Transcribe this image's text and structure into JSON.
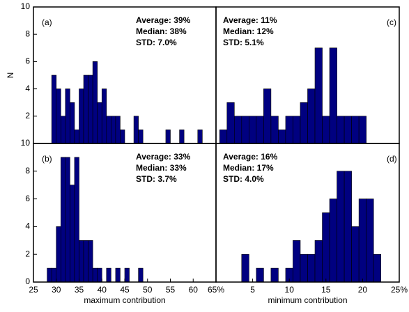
{
  "chart_data": [
    {
      "type": "histogram",
      "label": "(a)",
      "stats": [
        "Average: 39%",
        "Median: 38%",
        "STD: 7.0%"
      ],
      "ylabel": "N",
      "bins": [
        29,
        30,
        31,
        32,
        33,
        34,
        35,
        36,
        37,
        38,
        39,
        40,
        41,
        42,
        43,
        44,
        45,
        46,
        47,
        48,
        49,
        50,
        51,
        52,
        53,
        54,
        55,
        56,
        57,
        58,
        59,
        60,
        61,
        62
      ],
      "values": [
        5,
        4,
        2,
        4,
        3,
        1,
        4,
        5,
        5,
        6,
        3,
        4,
        2,
        2,
        2,
        1,
        0,
        0,
        2,
        1,
        0,
        0,
        0,
        0,
        0,
        1,
        0,
        0,
        1,
        0,
        0,
        0,
        1
      ],
      "color": "#000080",
      "xlim": [
        25,
        65
      ],
      "ylim": [
        0,
        10
      ],
      "yticks": [
        2,
        4,
        6,
        8,
        10
      ]
    },
    {
      "type": "histogram",
      "label": "(b)",
      "stats": [
        "Average: 33%",
        "Median: 33%",
        "STD: 3.7%"
      ],
      "xlabel": "maximum contribution",
      "bins": [
        28,
        29,
        30,
        31,
        32,
        33,
        34,
        35,
        36,
        37,
        38,
        39,
        40,
        41,
        42,
        43,
        44,
        45,
        46,
        47,
        48,
        49
      ],
      "values": [
        1,
        1,
        4,
        9,
        9,
        7,
        9,
        3,
        3,
        3,
        1,
        1,
        0,
        1,
        0,
        1,
        0,
        1,
        0,
        0,
        1
      ],
      "color": "#000080",
      "xlim": [
        25,
        65
      ],
      "ylim": [
        0,
        10
      ],
      "yticks": [
        0,
        2,
        4,
        6,
        8,
        10
      ],
      "xticks": [
        25,
        30,
        35,
        40,
        45,
        50,
        55,
        60,
        {
          "value": 65,
          "label": "65%"
        }
      ]
    },
    {
      "type": "histogram",
      "label": "(c)",
      "stats": [
        "Average: 11%",
        "Median: 12%",
        "STD: 5.1%"
      ],
      "bins": [
        0.5,
        1.5,
        2.5,
        3.5,
        4.5,
        5.5,
        6.5,
        7.5,
        8.5,
        9.5,
        10.5,
        11.5,
        12.5,
        13.5,
        14.5,
        15.5,
        16.5,
        17.5,
        18.5,
        19.5,
        20.5
      ],
      "values": [
        1,
        3,
        2,
        2,
        2,
        2,
        4,
        2,
        1,
        2,
        2,
        3,
        4,
        7,
        2,
        7,
        2,
        2,
        2,
        2
      ],
      "color": "#000080",
      "xlim": [
        0,
        25
      ],
      "ylim": [
        0,
        10
      ]
    },
    {
      "type": "histogram",
      "label": "(d)",
      "stats": [
        "Average: 16%",
        "Median: 17%",
        "STD: 4.0%"
      ],
      "xlabel": "minimum contribution",
      "bins": [
        3.5,
        4.5,
        5.5,
        6.5,
        7.5,
        8.5,
        9.5,
        10.5,
        11.5,
        12.5,
        13.5,
        14.5,
        15.5,
        16.5,
        17.5,
        18.5,
        19.5,
        20.5,
        21.5,
        22.5
      ],
      "values": [
        2,
        0,
        1,
        0,
        1,
        0,
        1,
        3,
        2,
        2,
        3,
        5,
        6,
        8,
        8,
        4,
        6,
        6,
        2
      ],
      "color": "#000080",
      "xlim": [
        0,
        25
      ],
      "ylim": [
        0,
        10
      ],
      "xticks": [
        5,
        10,
        15,
        20,
        {
          "value": 25,
          "label": "25%"
        }
      ]
    }
  ]
}
